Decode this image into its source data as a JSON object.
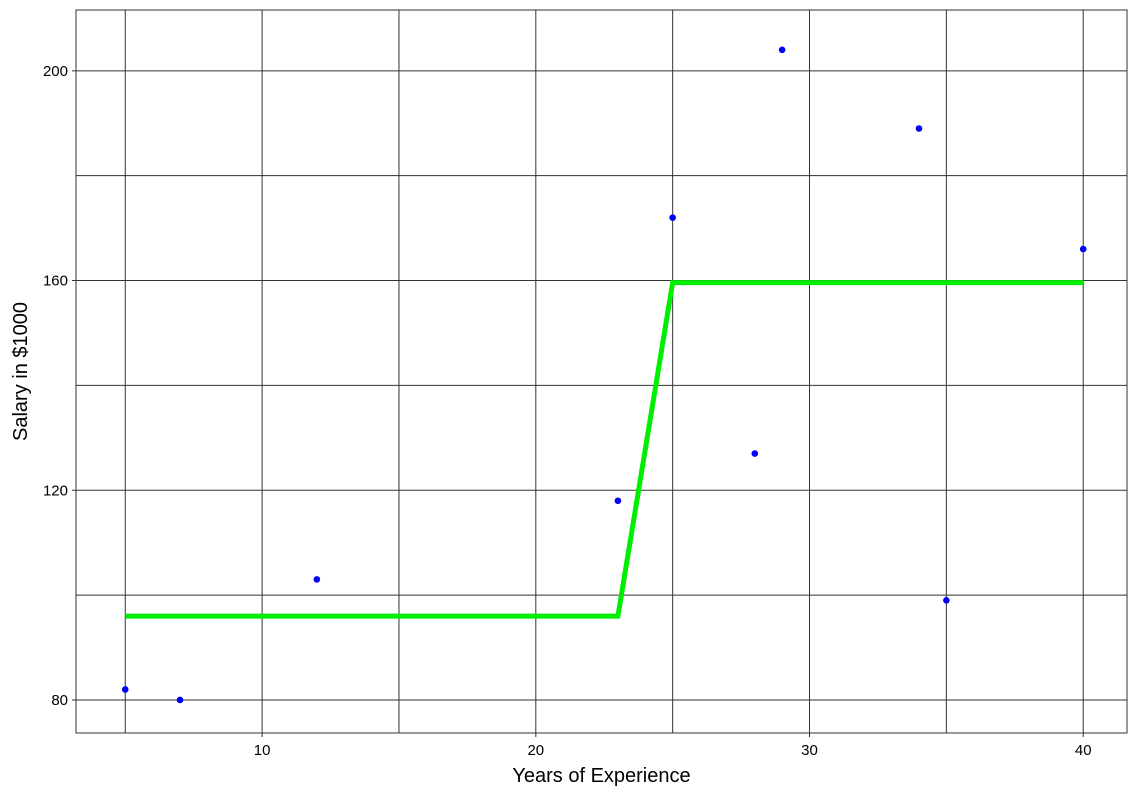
{
  "chart_data": {
    "type": "scatter",
    "title": "",
    "xlabel": "Years of Experience",
    "ylabel": "Salary in $1000",
    "xlim": [
      3.2,
      41.6
    ],
    "ylim": [
      73.7,
      211.6
    ],
    "x_major_ticks": [
      10,
      20,
      30,
      40
    ],
    "x_minor_grid": [
      5,
      15,
      25,
      35
    ],
    "y_major_ticks": [
      80,
      120,
      160,
      200
    ],
    "y_minor_grid": [
      100,
      140,
      180
    ],
    "grid": true,
    "legend": "none",
    "series": [
      {
        "type": "scatter",
        "points": [
          {
            "x": 5,
            "y": 82
          },
          {
            "x": 7,
            "y": 80
          },
          {
            "x": 12,
            "y": 103
          },
          {
            "x": 23,
            "y": 118
          },
          {
            "x": 25,
            "y": 172
          },
          {
            "x": 28,
            "y": 127
          },
          {
            "x": 29,
            "y": 204
          },
          {
            "x": 34,
            "y": 189
          },
          {
            "x": 35,
            "y": 99
          },
          {
            "x": 40,
            "y": 166
          }
        ]
      },
      {
        "type": "line",
        "points": [
          {
            "x": 5,
            "y": 96
          },
          {
            "x": 23,
            "y": 96
          },
          {
            "x": 25,
            "y": 159.6
          },
          {
            "x": 40,
            "y": 159.6
          }
        ]
      }
    ]
  },
  "colors": {
    "points": "#0000ff",
    "line": "#00ee00",
    "grid": "#333333",
    "panel_border": "#333333"
  }
}
